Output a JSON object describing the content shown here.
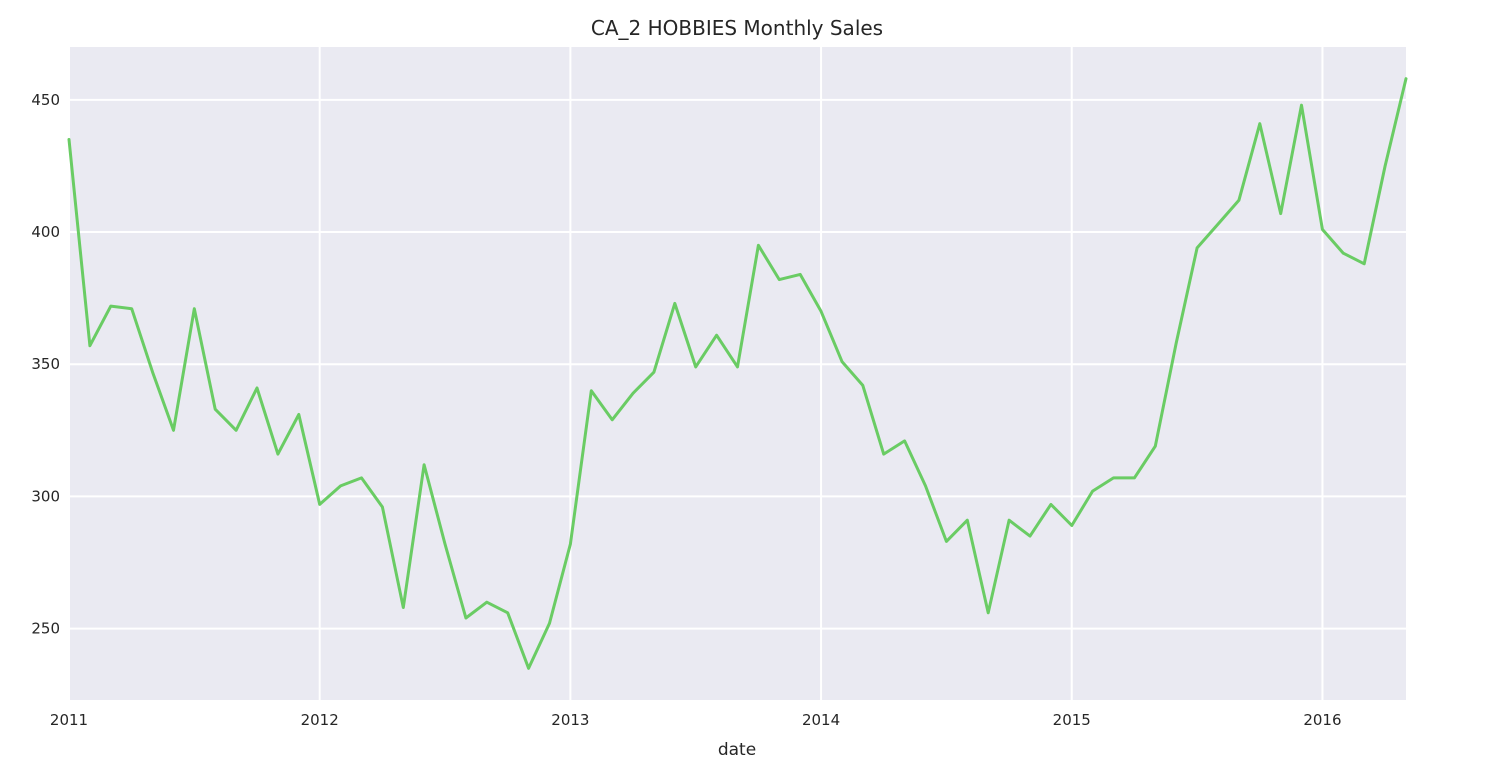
{
  "chart_data": {
    "type": "line",
    "title": "CA_2 HOBBIES Monthly Sales",
    "xlabel": "date",
    "ylabel": "",
    "x_ticks": [
      "2011",
      "2012",
      "2013",
      "2014",
      "2015",
      "2016"
    ],
    "y_ticks": [
      250,
      300,
      350,
      400,
      450
    ],
    "xlim": [
      "2011-01",
      "2016-05"
    ],
    "ylim": [
      223,
      470
    ],
    "grid": true,
    "legend": "none",
    "colors": {
      "background": "#EAEAF2",
      "line": "#6ACC64",
      "grid": "#FFFFFF"
    },
    "series": [
      {
        "x": [
          "2011-01",
          "2011-02",
          "2011-03",
          "2011-04",
          "2011-05",
          "2011-06",
          "2011-07",
          "2011-08",
          "2011-09",
          "2011-10",
          "2011-11",
          "2011-12",
          "2012-01",
          "2012-02",
          "2012-03",
          "2012-04",
          "2012-05",
          "2012-06",
          "2012-07",
          "2012-08",
          "2012-09",
          "2012-10",
          "2012-11",
          "2012-12",
          "2013-01",
          "2013-02",
          "2013-03",
          "2013-04",
          "2013-05",
          "2013-06",
          "2013-07",
          "2013-08",
          "2013-09",
          "2013-10",
          "2013-11",
          "2013-12",
          "2014-01",
          "2014-02",
          "2014-03",
          "2014-04",
          "2014-05",
          "2014-06",
          "2014-07",
          "2014-08",
          "2014-09",
          "2014-10",
          "2014-11",
          "2014-12",
          "2015-01",
          "2015-02",
          "2015-03",
          "2015-04",
          "2015-05",
          "2015-06",
          "2015-07",
          "2015-08",
          "2015-09",
          "2015-10",
          "2015-11",
          "2015-12",
          "2016-01",
          "2016-02",
          "2016-03",
          "2016-04",
          "2016-05"
        ],
        "values": [
          435,
          357,
          372,
          371,
          347,
          325,
          371,
          333,
          325,
          341,
          316,
          331,
          297,
          304,
          307,
          296,
          258,
          312,
          282,
          254,
          260,
          256,
          235,
          252,
          282,
          340,
          329,
          339,
          347,
          373,
          349,
          361,
          349,
          395,
          382,
          384,
          370,
          351,
          342,
          316,
          321,
          304,
          283,
          291,
          256,
          291,
          285,
          297,
          289,
          302,
          307,
          307,
          319,
          358,
          394,
          403,
          412,
          441,
          407,
          448,
          401,
          392,
          388,
          425,
          458
        ]
      }
    ]
  }
}
